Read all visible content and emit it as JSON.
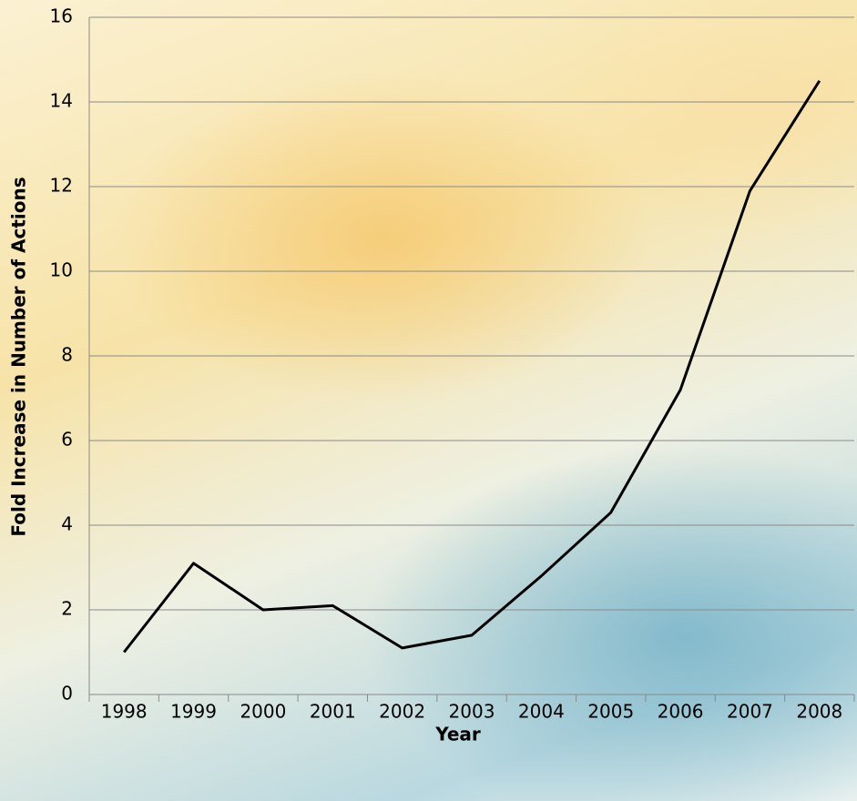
{
  "chart_data": {
    "type": "line",
    "x_label": "Year",
    "y_label": "Fold Increase in Number of Actions",
    "categories": [
      "1998",
      "1999",
      "2000",
      "2001",
      "2002",
      "2003",
      "2004",
      "2005",
      "2006",
      "2007",
      "2008"
    ],
    "series": [
      {
        "name": "Fold increase",
        "color": "#000000",
        "values": [
          1.0,
          3.1,
          2.0,
          2.1,
          1.1,
          1.4,
          2.8,
          4.3,
          7.2,
          11.9,
          14.5
        ]
      }
    ],
    "ylim": [
      0,
      16
    ],
    "yticks": [
      0,
      2,
      4,
      6,
      8,
      10,
      12,
      14,
      16
    ],
    "grid": true
  }
}
